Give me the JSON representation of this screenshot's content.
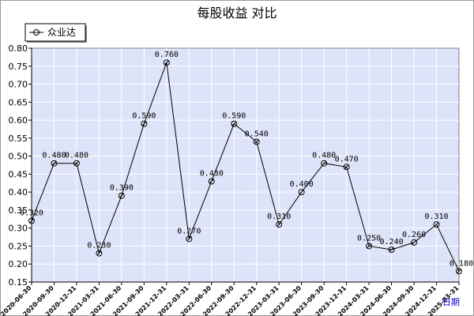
{
  "chart_data": {
    "type": "line",
    "title": "每股收益  对比",
    "xlabel": "",
    "ylabel": "",
    "unit_label": "日期",
    "ylim": [
      0.15,
      0.8
    ],
    "yticks": [
      0.15,
      0.2,
      0.25,
      0.3,
      0.35,
      0.4,
      0.45,
      0.5,
      0.55,
      0.6,
      0.65,
      0.7,
      0.75,
      0.8
    ],
    "ytick_labels": [
      "0.15",
      "0.20",
      "0.25",
      "0.30",
      "0.35",
      "0.40",
      "0.45",
      "0.50",
      "0.55",
      "0.60",
      "0.65",
      "0.70",
      "0.75",
      "0.80"
    ],
    "categories": [
      "2020-06-30",
      "2020-09-30",
      "2020-12-31",
      "2021-03-31",
      "2021-06-30",
      "2021-09-30",
      "2021-12-31",
      "2022-03-31",
      "2022-06-30",
      "2022-09-30",
      "2022-12-31",
      "2023-03-31",
      "2023-06-30",
      "2023-09-30",
      "2023-12-31",
      "2024-03-31",
      "2024-06-30",
      "2024-09-30",
      "2024-12-31",
      "2025-03-31"
    ],
    "series": [
      {
        "name": "众业达",
        "values": [
          0.32,
          0.48,
          0.48,
          0.23,
          0.39,
          0.59,
          0.76,
          0.27,
          0.43,
          0.59,
          0.54,
          0.31,
          0.4,
          0.48,
          0.47,
          0.25,
          0.24,
          0.26,
          0.31,
          0.18
        ],
        "value_labels": [
          "0.320",
          "0.480",
          "0.480",
          "0.230",
          "0.390",
          "0.590",
          "0.760",
          "0.270",
          "0.430",
          "0.590",
          "0.540",
          "0.310",
          "0.400",
          "0.480",
          "0.470",
          "0.250",
          "0.240",
          "0.260",
          "0.310",
          "0.180"
        ]
      }
    ],
    "grid": true,
    "legend_position": "top-left",
    "colors": {
      "plot_bg": "#dde3f8",
      "grid": "#ffffff",
      "line": "#000000",
      "frame": "#9a9a9a"
    }
  }
}
